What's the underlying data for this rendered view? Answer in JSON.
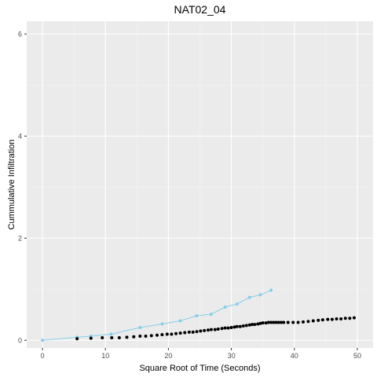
{
  "chart_data": {
    "type": "scatter",
    "title": "NAT02_04",
    "xlabel": "Square Root of Time (Seconds)",
    "ylabel": "Cummulative Infiltration",
    "xlim": [
      -2.5,
      52.5
    ],
    "ylim": [
      -0.15,
      6.25
    ],
    "xticks": [
      0,
      10,
      20,
      30,
      40,
      50
    ],
    "yticks": [
      0,
      2,
      4,
      6
    ],
    "grid": true,
    "colors": {
      "panel": "#ebebeb",
      "grid_major": "#ffffff",
      "grid_minor": "#f5f5f5"
    },
    "series": [
      {
        "style": "line+points",
        "color": "#87ceeb",
        "x": [
          0,
          5.5,
          7.7,
          10.9,
          15.5,
          19.0,
          21.9,
          24.5,
          26.8,
          29.0,
          30.9,
          32.9,
          34.6,
          36.3
        ],
        "y": [
          0,
          0.06,
          0.08,
          0.12,
          0.25,
          0.32,
          0.38,
          0.48,
          0.51,
          0.65,
          0.71,
          0.84,
          0.89,
          0.98
        ]
      },
      {
        "style": "points",
        "color": "#000000",
        "x": [
          5.5,
          7.7,
          9.5,
          11.0,
          12.2,
          13.4,
          14.5,
          15.5,
          16.4,
          17.3,
          18.2,
          19.0,
          19.8,
          20.5,
          21.2,
          21.9,
          22.6,
          23.3,
          23.9,
          24.5,
          25.1,
          25.7,
          26.3,
          26.8,
          27.4,
          27.9,
          28.5,
          29.0,
          29.5,
          30.0,
          30.5,
          30.9,
          31.4,
          31.9,
          32.4,
          32.9,
          33.3,
          33.7,
          34.2,
          34.6,
          35.0,
          35.5,
          35.9,
          36.3,
          36.7,
          37.1,
          37.5,
          37.9,
          38.3,
          39.0,
          39.8,
          40.6,
          41.4,
          42.2,
          43.0,
          43.8,
          44.5,
          45.3,
          46.0,
          46.7,
          47.4,
          48.1,
          48.8,
          49.5
        ],
        "y": [
          0.03,
          0.04,
          0.05,
          0.05,
          0.05,
          0.06,
          0.07,
          0.08,
          0.08,
          0.09,
          0.1,
          0.11,
          0.12,
          0.12,
          0.13,
          0.14,
          0.15,
          0.16,
          0.16,
          0.17,
          0.18,
          0.19,
          0.2,
          0.21,
          0.21,
          0.22,
          0.23,
          0.24,
          0.24,
          0.25,
          0.26,
          0.27,
          0.27,
          0.28,
          0.29,
          0.3,
          0.31,
          0.31,
          0.32,
          0.33,
          0.34,
          0.34,
          0.35,
          0.35,
          0.35,
          0.35,
          0.35,
          0.35,
          0.35,
          0.35,
          0.35,
          0.35,
          0.36,
          0.37,
          0.38,
          0.39,
          0.4,
          0.41,
          0.41,
          0.42,
          0.42,
          0.43,
          0.43,
          0.44
        ]
      }
    ]
  }
}
